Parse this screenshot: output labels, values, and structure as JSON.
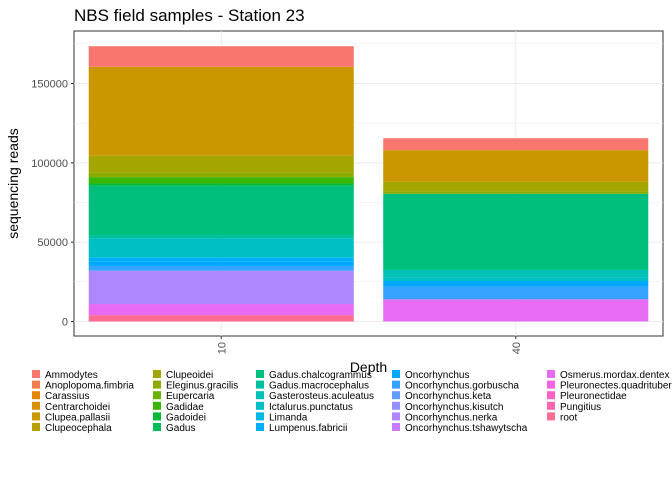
{
  "chart_data": {
    "type": "bar",
    "stacked": true,
    "title": "NBS field samples - Station 23",
    "xlabel": "Depth",
    "ylabel": "sequencing reads",
    "categories": [
      "10",
      "40"
    ],
    "ylim": [
      0,
      175000
    ],
    "yticks": [
      0,
      50000,
      100000,
      150000
    ],
    "grid": true,
    "legend_position": "bottom",
    "series": [
      {
        "name": "Ammodytes",
        "color": "#F8766D",
        "values": [
          13000,
          7500
        ]
      },
      {
        "name": "Anoplopoma.fimbria",
        "color": "#F07F4F",
        "values": [
          0,
          0
        ]
      },
      {
        "name": "Carassius",
        "color": "#E58700",
        "values": [
          0,
          0
        ]
      },
      {
        "name": "Centrarchoidei",
        "color": "#D69100",
        "values": [
          0,
          0
        ]
      },
      {
        "name": "Clupea.pallasii",
        "color": "#C99800",
        "values": [
          56000,
          20000
        ]
      },
      {
        "name": "Clupeocephala",
        "color": "#B79F00",
        "values": [
          0,
          0
        ]
      },
      {
        "name": "Clupeoidei",
        "color": "#A3A500",
        "values": [
          10500,
          6000
        ]
      },
      {
        "name": "Eleginus.gracilis",
        "color": "#8DAA00",
        "values": [
          3000,
          1500
        ]
      },
      {
        "name": "Eupercaria",
        "color": "#6BB100",
        "values": [
          0,
          0
        ]
      },
      {
        "name": "Gadidae",
        "color": "#39B600",
        "values": [
          4000,
          0
        ]
      },
      {
        "name": "Gadoidei",
        "color": "#00BA38",
        "values": [
          1500,
          0
        ]
      },
      {
        "name": "Gadus",
        "color": "#00BC59",
        "values": [
          0,
          0
        ]
      },
      {
        "name": "Gadus.chalcogrammus",
        "color": "#00BF7D",
        "values": [
          31000,
          48000
        ]
      },
      {
        "name": "Gadus.macrocephalus",
        "color": "#00C19C",
        "values": [
          2000,
          0
        ]
      },
      {
        "name": "Gasterosteus.aculeatus",
        "color": "#00C0B8",
        "values": [
          0,
          5000
        ]
      },
      {
        "name": "Ictalurus.punctatus",
        "color": "#00BFC4",
        "values": [
          12000,
          2000
        ]
      },
      {
        "name": "Limanda",
        "color": "#00B8E5",
        "values": [
          0,
          0
        ]
      },
      {
        "name": "Lumpenus.fabricii",
        "color": "#00B0F6",
        "values": [
          2500,
          0
        ]
      },
      {
        "name": "Oncorhynchus",
        "color": "#00A9FF",
        "values": [
          3000,
          3500
        ]
      },
      {
        "name": "Oncorhynchus.gorbuscha",
        "color": "#35A2FF",
        "values": [
          3000,
          8000
        ]
      },
      {
        "name": "Oncorhynchus.keta",
        "color": "#619CFF",
        "values": [
          0,
          0
        ]
      },
      {
        "name": "Oncorhynchus.kisutch",
        "color": "#9590FF",
        "values": [
          0,
          0
        ]
      },
      {
        "name": "Oncorhynchus.nerka",
        "color": "#AE87FF",
        "values": [
          21000,
          0
        ]
      },
      {
        "name": "Oncorhynchus.tshawytscha",
        "color": "#C77CFF",
        "values": [
          0,
          0
        ]
      },
      {
        "name": "Osmerus.mordax.dentex",
        "color": "#E76BF3",
        "values": [
          7000,
          14000
        ]
      },
      {
        "name": "Pleuronectes.quadrituberculatus",
        "color": "#F564E3",
        "values": [
          0,
          0
        ]
      },
      {
        "name": "Pleuronectidae",
        "color": "#FF61C3",
        "values": [
          0,
          0
        ]
      },
      {
        "name": "Pungitius",
        "color": "#FF64B0",
        "values": [
          0,
          0
        ]
      },
      {
        "name": "root",
        "color": "#FF6C91",
        "values": [
          4000,
          0
        ]
      }
    ]
  }
}
